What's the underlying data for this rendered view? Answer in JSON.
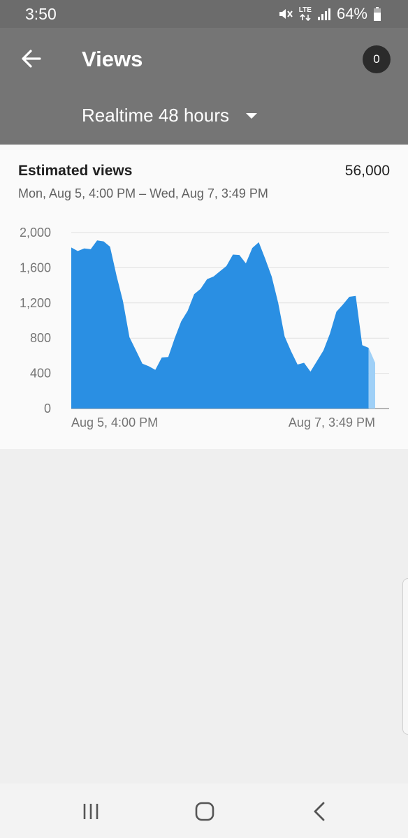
{
  "status_bar": {
    "time": "3:50",
    "network": "LTE",
    "battery": "64%",
    "icons": [
      "mute-icon",
      "lte-icon",
      "signal-icon",
      "battery-icon"
    ]
  },
  "app_bar": {
    "title": "Views",
    "notification_count": "0",
    "range_label": "Realtime 48 hours",
    "back_icon": "back-arrow-icon",
    "dropdown_icon": "dropdown-arrow-icon"
  },
  "card": {
    "title": "Estimated views",
    "total": "56,000",
    "date_range": "Mon, Aug 5, 4:00 PM – Wed, Aug 7, 3:49 PM"
  },
  "chart_data": {
    "type": "area",
    "title": "",
    "xlabel": "",
    "ylabel": "",
    "ylim": [
      0,
      2000
    ],
    "yticks": [
      0,
      400,
      800,
      1200,
      1600,
      2000
    ],
    "ytick_labels": [
      "0",
      "400",
      "800",
      "1,200",
      "1,600",
      "2,000"
    ],
    "x_labels": [
      "Aug 5, 4:00 PM",
      "Aug 7, 3:49 PM"
    ],
    "grid": true,
    "colors": {
      "area": "#2a8fe3",
      "partial": "#9fd0f7",
      "grid": "#e0e0e0",
      "axis": "#9e9e9e"
    },
    "series": [
      {
        "values": [
          1830,
          1790,
          1820,
          1810,
          1910,
          1900,
          1840,
          1510,
          1220,
          810,
          660,
          510,
          480,
          440,
          580,
          585,
          800,
          990,
          1110,
          1300,
          1360,
          1470,
          1500,
          1560,
          1620,
          1750,
          1745,
          1650,
          1825,
          1890,
          1700,
          1500,
          1200,
          820,
          650,
          500,
          520,
          420,
          540,
          660,
          850,
          1100,
          1180,
          1270,
          1280,
          720,
          690,
          520
        ]
      }
    ],
    "partial_last_value": true
  },
  "nav_bar": {
    "icons": [
      "recent-apps-icon",
      "home-icon",
      "back-icon"
    ]
  }
}
